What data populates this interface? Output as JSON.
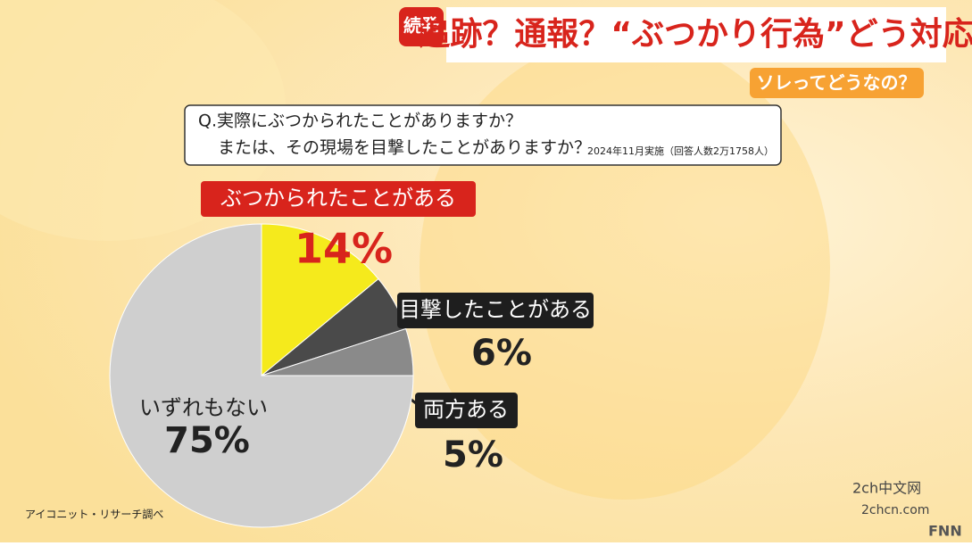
{
  "header": {
    "tag": "続発",
    "headline": "追跡？通報？“ぶつかり行為”どう対応",
    "corner": "ソレってどうなの？"
  },
  "chart_data": {
    "type": "pie",
    "title": [
      "Q.実際にぶつかられたことがありますか？",
      "または、その現場を目撃したことがありますか？"
    ],
    "subtitle": "2024年11月実施（回答人数2万1758人）",
    "categories": [
      "ぶつかられたことがある",
      "目撃したことがある",
      "両方ある",
      "いずれもない"
    ],
    "values": [
      14,
      6,
      5,
      75
    ],
    "value_labels": [
      "14%",
      "6%",
      "5%",
      "75%"
    ],
    "colors": [
      "#f5ea1c",
      "#4a4a4a",
      "#8a8a8a",
      "#cfcfcf"
    ],
    "source": "アイコニット・リサーチ調べ"
  },
  "watermark": {
    "site": "2ch中文网",
    "url": "2chcn.com",
    "logo": "FNN"
  }
}
